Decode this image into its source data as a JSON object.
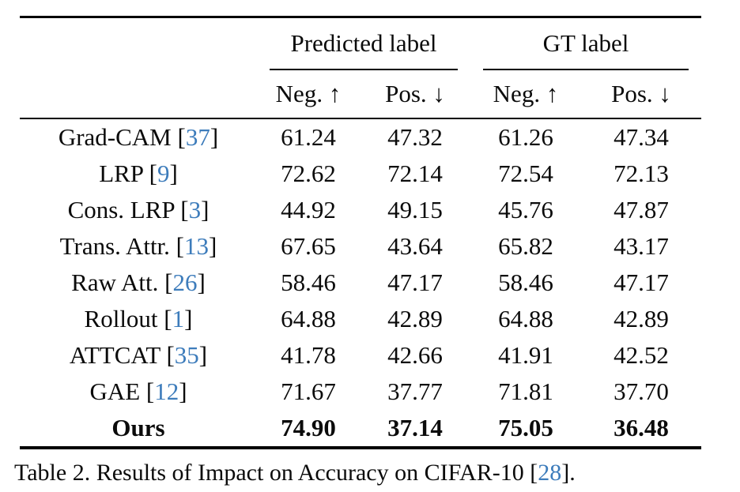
{
  "colors": {
    "citation_blue": "#3d7cbb",
    "text": "#0b0b0b",
    "background": "#ffffff"
  },
  "citation": {
    "bracket_open": "[",
    "bracket_close": "]"
  },
  "table": {
    "header": {
      "group1": "Predicted label",
      "group2": "GT label",
      "subcols": [
        "Neg. ↑",
        "Pos. ↓",
        "Neg. ↑",
        "Pos. ↓"
      ]
    },
    "rows": [
      {
        "method": "Grad-CAM",
        "cite": "37",
        "bold": false,
        "values": [
          "61.24",
          "47.32",
          "61.26",
          "47.34"
        ]
      },
      {
        "method": "LRP",
        "cite": "9",
        "bold": false,
        "values": [
          "72.62",
          "72.14",
          "72.54",
          "72.13"
        ]
      },
      {
        "method": "Cons. LRP",
        "cite": "3",
        "bold": false,
        "values": [
          "44.92",
          "49.15",
          "45.76",
          "47.87"
        ]
      },
      {
        "method": "Trans. Attr.",
        "cite": "13",
        "bold": false,
        "values": [
          "67.65",
          "43.64",
          "65.82",
          "43.17"
        ]
      },
      {
        "method": "Raw Att.",
        "cite": "26",
        "bold": false,
        "values": [
          "58.46",
          "47.17",
          "58.46",
          "47.17"
        ]
      },
      {
        "method": "Rollout",
        "cite": "1",
        "bold": false,
        "values": [
          "64.88",
          "42.89",
          "64.88",
          "42.89"
        ]
      },
      {
        "method": "ATTCAT",
        "cite": "35",
        "bold": false,
        "values": [
          "41.78",
          "42.66",
          "41.91",
          "42.52"
        ]
      },
      {
        "method": "GAE",
        "cite": "12",
        "bold": false,
        "values": [
          "71.67",
          "37.77",
          "71.81",
          "37.70"
        ]
      },
      {
        "method": "Ours",
        "cite": null,
        "bold": true,
        "values": [
          "74.90",
          "37.14",
          "75.05",
          "36.48"
        ]
      }
    ]
  },
  "caption": {
    "prefix": "Table 2. Results of Impact on Accuracy on CIFAR-10 ",
    "cite_number": "28",
    "suffix": "."
  }
}
